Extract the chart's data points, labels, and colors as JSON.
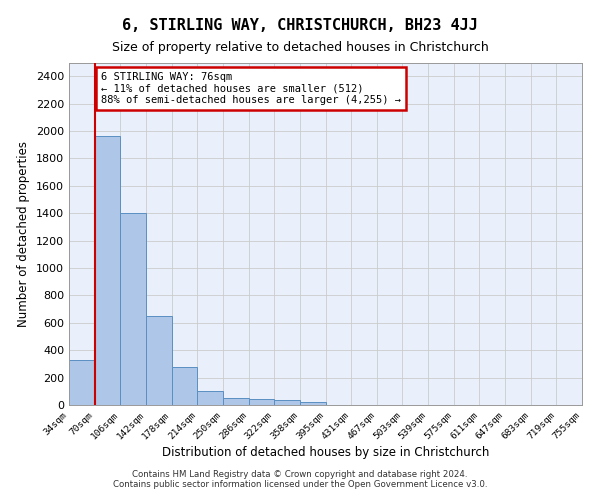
{
  "title": "6, STIRLING WAY, CHRISTCHURCH, BH23 4JJ",
  "subtitle": "Size of property relative to detached houses in Christchurch",
  "xlabel": "Distribution of detached houses by size in Christchurch",
  "ylabel": "Number of detached properties",
  "footer_line1": "Contains HM Land Registry data © Crown copyright and database right 2024.",
  "footer_line2": "Contains public sector information licensed under the Open Government Licence v3.0.",
  "annotation_line1": "6 STIRLING WAY: 76sqm",
  "annotation_line2": "← 11% of detached houses are smaller (512)",
  "annotation_line3": "88% of semi-detached houses are larger (4,255) →",
  "bar_color": "#aec6e8",
  "bar_edge_color": "#5a8fc3",
  "grid_color": "#cccccc",
  "bg_color": "#eaf0fb",
  "red_line_color": "#cc0000",
  "annotation_box_color": "#cc0000",
  "tick_labels": [
    "34sqm",
    "70sqm",
    "106sqm",
    "142sqm",
    "178sqm",
    "214sqm",
    "250sqm",
    "286sqm",
    "322sqm",
    "358sqm",
    "395sqm",
    "431sqm",
    "467sqm",
    "503sqm",
    "539sqm",
    "575sqm",
    "611sqm",
    "647sqm",
    "683sqm",
    "719sqm",
    "755sqm"
  ],
  "values": [
    330,
    1960,
    1400,
    650,
    280,
    105,
    50,
    45,
    35,
    22,
    0,
    0,
    0,
    0,
    0,
    0,
    0,
    0,
    0,
    0
  ],
  "ylim": [
    0,
    2500
  ],
  "yticks": [
    0,
    200,
    400,
    600,
    800,
    1000,
    1200,
    1400,
    1600,
    1800,
    2000,
    2200,
    2400
  ],
  "red_line_x": 0.5
}
